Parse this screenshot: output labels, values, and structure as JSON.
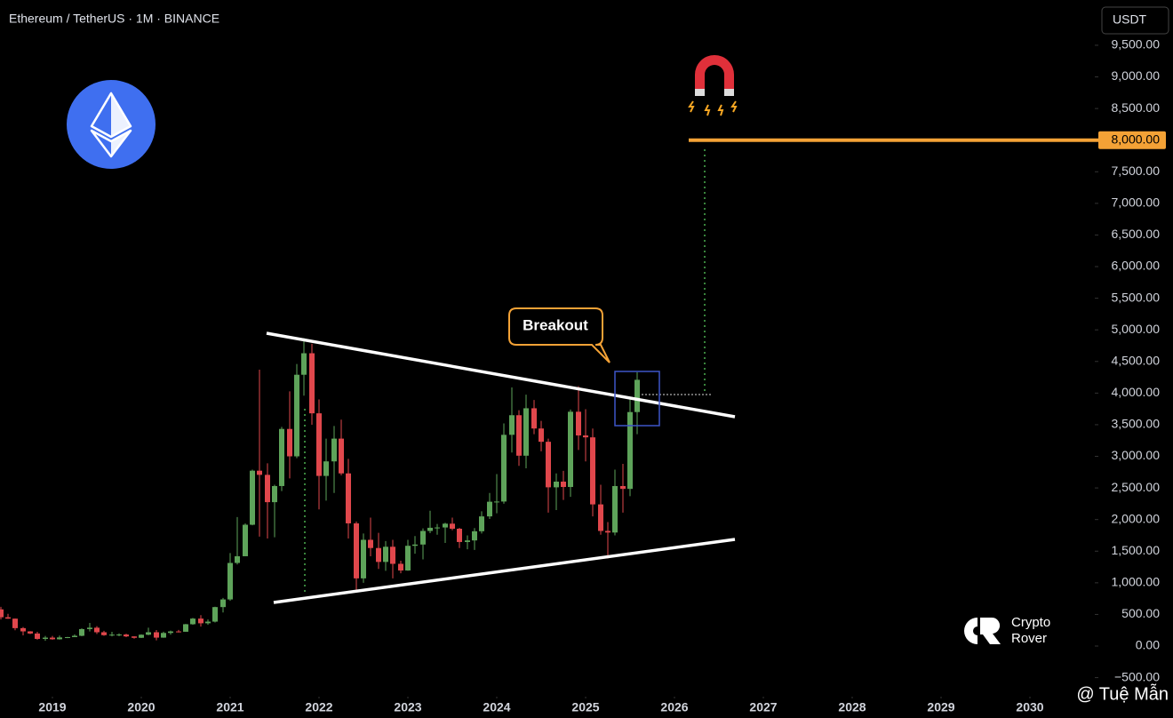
{
  "chart_data": {
    "type": "candlestick",
    "title": "Ethereum / TetherUS · 1M · BINANCE",
    "currency": "USDT",
    "up_color": "#5ea35a",
    "down_color": "#e0474c",
    "xlim": [
      2018.41,
      2030.71
    ],
    "ylim": [
      -1138,
      10216
    ],
    "xticks": [
      2019,
      2020,
      2021,
      2022,
      2023,
      2024,
      2025,
      2026,
      2027,
      2028,
      2029,
      2030
    ],
    "yticks": [
      {
        "value": 9500,
        "label": "9,500.00"
      },
      {
        "value": 9000,
        "label": "9,000.00"
      },
      {
        "value": 8500,
        "label": "8,500.00"
      },
      {
        "value": 7500,
        "label": "7,500.00"
      },
      {
        "value": 7000,
        "label": "7,000.00"
      },
      {
        "value": 6500,
        "label": "6,500.00"
      },
      {
        "value": 6000,
        "label": "6,000.00"
      },
      {
        "value": 5500,
        "label": "5,500.00"
      },
      {
        "value": 5000,
        "label": "5,000.00"
      },
      {
        "value": 4500,
        "label": "4,500.00"
      },
      {
        "value": 4000,
        "label": "4,000.00"
      },
      {
        "value": 3500,
        "label": "3,500.00"
      },
      {
        "value": 3000,
        "label": "3,000.00"
      },
      {
        "value": 2500,
        "label": "2,500.00"
      },
      {
        "value": 2000,
        "label": "2,000.00"
      },
      {
        "value": 1500,
        "label": "1,500.00"
      },
      {
        "value": 1000,
        "label": "1,000.00"
      },
      {
        "value": 500,
        "label": "500.00"
      },
      {
        "value": 0,
        "label": "0.00"
      },
      {
        "value": -500,
        "label": "−500.00"
      }
    ],
    "level": {
      "value": 8000,
      "label": "8,000.00",
      "color": "#f4a236",
      "x_start": 2026.16
    },
    "annotation": "Breakout",
    "watermark": [
      "Crypto",
      "Rover"
    ],
    "credit": "@ Tuệ Mẫn",
    "x": [
      2018.42,
      2018.5,
      2018.58,
      2018.67,
      2018.75,
      2018.83,
      2018.92,
      2019.0,
      2019.08,
      2019.17,
      2019.25,
      2019.33,
      2019.42,
      2019.5,
      2019.58,
      2019.67,
      2019.75,
      2019.83,
      2019.92,
      2020.0,
      2020.08,
      2020.17,
      2020.25,
      2020.33,
      2020.42,
      2020.5,
      2020.58,
      2020.67,
      2020.75,
      2020.83,
      2020.92,
      2021.0,
      2021.08,
      2021.17,
      2021.25,
      2021.33,
      2021.42,
      2021.5,
      2021.58,
      2021.67,
      2021.75,
      2021.83,
      2021.92,
      2022.0,
      2022.08,
      2022.17,
      2022.25,
      2022.33,
      2022.42,
      2022.5,
      2022.58,
      2022.67,
      2022.75,
      2022.83,
      2022.92,
      2023.0,
      2023.08,
      2023.17,
      2023.25,
      2023.33,
      2023.42,
      2023.5,
      2023.58,
      2023.67,
      2023.75,
      2023.83,
      2023.92,
      2024.0,
      2024.08,
      2024.17,
      2024.25,
      2024.33,
      2024.42,
      2024.5,
      2024.58,
      2024.67,
      2024.75,
      2024.83,
      2024.92,
      2025.0,
      2025.08,
      2025.17,
      2025.25,
      2025.33,
      2025.42,
      2025.5,
      2025.58
    ],
    "open": [
      580,
      455,
      433,
      283,
      232,
      198,
      113,
      133,
      107,
      136,
      141,
      162,
      268,
      290,
      218,
      172,
      180,
      182,
      152,
      130,
      179,
      218,
      133,
      207,
      231,
      226,
      345,
      434,
      360,
      386,
      616,
      737,
      1314,
      1420,
      1918,
      2773,
      2707,
      2275,
      2530,
      3433,
      3000,
      4290,
      4630,
      3680,
      2690,
      2920,
      3280,
      2730,
      1940,
      1070,
      1680,
      1550,
      1330,
      1570,
      1300,
      1195,
      1585,
      1605,
      1820,
      1870,
      1875,
      1935,
      1855,
      1645,
      1670,
      1815,
      2050,
      2282,
      2285,
      3340,
      3650,
      3010,
      3760,
      3440,
      3230,
      2510,
      2600,
      2515,
      3705,
      3330,
      3300,
      2240,
      1820,
      1795,
      2530,
      2485,
      3700
    ],
    "high": [
      620,
      510,
      435,
      300,
      235,
      225,
      160,
      160,
      165,
      145,
      185,
      280,
      365,
      315,
      240,
      225,
      200,
      195,
      155,
      185,
      290,
      253,
      227,
      245,
      255,
      350,
      445,
      488,
      420,
      622,
      760,
      1470,
      2040,
      1940,
      2790,
      4370,
      2890,
      2550,
      3465,
      4027,
      4460,
      4870,
      4780,
      3900,
      3280,
      3480,
      3580,
      2960,
      1970,
      1780,
      2030,
      1790,
      1660,
      1680,
      1350,
      1680,
      1740,
      1860,
      2140,
      1930,
      1950,
      2030,
      1870,
      1750,
      1865,
      2130,
      2420,
      2720,
      3520,
      4090,
      3730,
      3975,
      3890,
      3560,
      3280,
      2730,
      2770,
      3740,
      4110,
      3745,
      3440,
      2550,
      1960,
      2790,
      2880,
      3940,
      4330
    ],
    "low": [
      420,
      430,
      250,
      168,
      188,
      100,
      82,
      100,
      102,
      125,
      140,
      155,
      230,
      190,
      162,
      153,
      155,
      140,
      117,
      126,
      170,
      90,
      130,
      180,
      215,
      225,
      335,
      308,
      335,
      372,
      530,
      715,
      1290,
      1420,
      1910,
      1730,
      1700,
      1720,
      2450,
      2650,
      2970,
      3960,
      3500,
      2160,
      2300,
      2420,
      2700,
      1700,
      880,
      1000,
      1420,
      1220,
      1190,
      1070,
      1150,
      1190,
      1460,
      1370,
      1785,
      1760,
      1630,
      1830,
      1550,
      1530,
      1520,
      1780,
      2010,
      2100,
      2250,
      3060,
      2850,
      2810,
      3350,
      3080,
      2110,
      2150,
      2310,
      2360,
      3100,
      2920,
      2050,
      1760,
      1385,
      1750,
      2110,
      2370,
      3350
    ],
    "close": [
      455,
      433,
      283,
      232,
      198,
      113,
      133,
      107,
      136,
      141,
      162,
      268,
      290,
      218,
      172,
      180,
      182,
      152,
      130,
      179,
      218,
      133,
      207,
      231,
      226,
      345,
      434,
      360,
      386,
      616,
      737,
      1314,
      1420,
      1918,
      2773,
      2707,
      2275,
      2530,
      3433,
      3000,
      4290,
      4630,
      3680,
      2690,
      2920,
      3280,
      2730,
      1940,
      1070,
      1680,
      1550,
      1330,
      1570,
      1300,
      1195,
      1585,
      1605,
      1820,
      1870,
      1875,
      1935,
      1855,
      1645,
      1670,
      1815,
      2050,
      2282,
      2285,
      3340,
      3650,
      3010,
      3760,
      3440,
      3230,
      2510,
      2600,
      2515,
      3705,
      3330,
      3300,
      2240,
      1820,
      1795,
      2530,
      2485,
      3700,
      4210
    ]
  }
}
